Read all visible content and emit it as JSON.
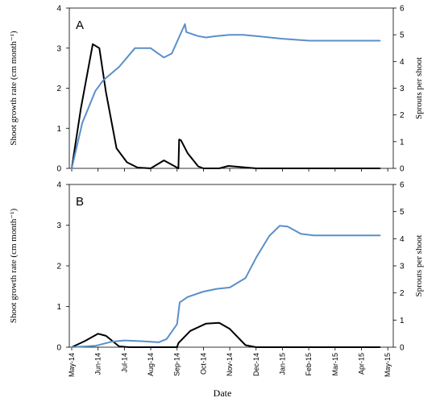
{
  "figure": {
    "xlabel": "Date"
  },
  "chart_data": [
    {
      "type": "line",
      "panel_label": "A",
      "ylabel_left": "Shoot growth rate (cm month⁻¹)",
      "ylabel_right": "Sprouts per shoot",
      "ylim_left": [
        0,
        4
      ],
      "ylim_right": [
        0,
        6
      ],
      "yticks_left": [
        0,
        1,
        2,
        3,
        4
      ],
      "yticks_right": [
        0,
        1,
        2,
        3,
        4,
        5,
        6
      ],
      "x_categories": [
        "May-14",
        "Jun-14",
        "Jul-14",
        "Aug-14",
        "Sep-14",
        "Oct-14",
        "Nov-14",
        "Dec-14",
        "Jan-15",
        "Feb-15",
        "Mar-15",
        "Apr-15",
        "May-15"
      ],
      "show_x_tick_labels": false,
      "grid": false,
      "series": [
        {
          "axis": "left",
          "color": "#000000",
          "x": [
            "May-14",
            "May-14",
            "Jun-14",
            "Jun-14",
            "Jun-14",
            "Jul-14",
            "Jul-14",
            "Aug-14",
            "Aug-14",
            "Sep-14",
            "Sep-14",
            "Oct-14",
            "Oct-14",
            "Oct-14",
            "Oct-14",
            "Oct-14",
            "Nov-14",
            "Nov-14",
            "Dec-14",
            "Dec-14",
            "Jan-15",
            "Feb-15",
            "Mar-15",
            "Apr-15",
            "May-15"
          ],
          "xi": [
            0,
            0.35,
            0.8,
            1.05,
            1.3,
            1.7,
            2.1,
            2.5,
            3.0,
            3.5,
            4.0,
            4.05,
            4.08,
            4.15,
            4.4,
            4.8,
            5.0,
            5.6,
            5.95,
            6.3,
            7.0,
            8.0,
            9.0,
            10.0,
            11.7
          ],
          "values": [
            0,
            1.5,
            3.1,
            3.0,
            1.9,
            0.5,
            0.15,
            0.02,
            0,
            0.2,
            0.02,
            0,
            0.72,
            0.7,
            0.38,
            0.05,
            0,
            0,
            0.06,
            0.04,
            0,
            0,
            0,
            0,
            0
          ]
        },
        {
          "axis": "right",
          "color": "#5b8fc9",
          "x": [
            "May-14",
            "May-14",
            "Jun-14",
            "Jun-14",
            "Jul-14",
            "Aug-14",
            "Aug-14",
            "Sep-14",
            "Sep-14",
            "Oct-14",
            "Oct-14",
            "Oct-14",
            "Nov-14",
            "Nov-14",
            "Dec-14",
            "Dec-14",
            "Jan-15",
            "Feb-15",
            "Mar-15",
            "Apr-15",
            "May-15"
          ],
          "xi": [
            0,
            0.4,
            0.9,
            1.2,
            1.8,
            2.4,
            3.0,
            3.5,
            3.8,
            4.3,
            4.35,
            4.8,
            5.1,
            5.5,
            6.0,
            6.5,
            7.0,
            8.0,
            9.0,
            10.0,
            11.7
          ],
          "values": [
            0,
            1.7,
            2.9,
            3.3,
            3.8,
            4.5,
            4.5,
            4.15,
            4.3,
            5.4,
            5.1,
            4.95,
            4.9,
            4.95,
            5.0,
            5.0,
            4.95,
            4.85,
            4.78,
            4.78,
            4.78
          ]
        }
      ]
    },
    {
      "type": "line",
      "panel_label": "B",
      "ylabel_left": "Shoot growth rate (cm month⁻¹)",
      "ylabel_right": "Sprouts per shoot",
      "ylim_left": [
        0,
        4
      ],
      "ylim_right": [
        0,
        6
      ],
      "yticks_left": [
        0,
        1,
        2,
        3,
        4
      ],
      "yticks_right": [
        0,
        1,
        2,
        3,
        4,
        5,
        6
      ],
      "x_categories": [
        "May-14",
        "Jun-14",
        "Jul-14",
        "Aug-14",
        "Sep-14",
        "Oct-14",
        "Nov-14",
        "Dec-14",
        "Jan-15",
        "Feb-15",
        "Mar-15",
        "Apr-15",
        "May-15"
      ],
      "show_x_tick_labels": true,
      "grid": false,
      "series": [
        {
          "axis": "left",
          "color": "#000000",
          "x": [
            "May-14",
            "May-14",
            "Jun-14",
            "Jun-14",
            "Jul-14",
            "Jul-14",
            "Sep-14",
            "Oct-14",
            "Oct-14",
            "Nov-14",
            "Nov-14",
            "Dec-14",
            "Dec-14",
            "Jan-15",
            "Feb-15",
            "Mar-15",
            "Apr-15",
            "May-15"
          ],
          "xi": [
            0,
            0.5,
            1.0,
            1.3,
            1.8,
            2.2,
            4.0,
            4.05,
            4.5,
            5.1,
            5.6,
            6.0,
            6.6,
            7.0,
            8.0,
            9.0,
            10.0,
            11.7
          ],
          "values": [
            0,
            0.15,
            0.33,
            0.28,
            0.02,
            0,
            0,
            0.1,
            0.4,
            0.58,
            0.6,
            0.45,
            0.05,
            0,
            0,
            0,
            0,
            0
          ]
        },
        {
          "axis": "right",
          "color": "#5b8fc9",
          "x": [
            "May-14",
            "Jun-14",
            "Jul-14",
            "Jul-14",
            "Aug-14",
            "Sep-14",
            "Sep-14",
            "Oct-14",
            "Oct-14",
            "Oct-14",
            "Nov-14",
            "Nov-14",
            "Dec-14",
            "Dec-14",
            "Jan-15",
            "Jan-15",
            "Feb-15",
            "Feb-15",
            "Mar-15",
            "Mar-15",
            "Apr-15",
            "May-15"
          ],
          "xi": [
            0,
            0.9,
            1.5,
            2.0,
            2.7,
            3.3,
            3.6,
            4.0,
            4.1,
            4.4,
            5.0,
            5.5,
            6.0,
            6.6,
            7.0,
            7.5,
            7.9,
            8.2,
            8.7,
            9.2,
            10.0,
            11.7
          ],
          "values": [
            0,
            0.05,
            0.2,
            0.25,
            0.22,
            0.18,
            0.3,
            0.85,
            1.65,
            1.85,
            2.05,
            2.15,
            2.2,
            2.55,
            3.3,
            4.1,
            4.48,
            4.45,
            4.18,
            4.12,
            4.12,
            4.12
          ]
        }
      ]
    }
  ]
}
